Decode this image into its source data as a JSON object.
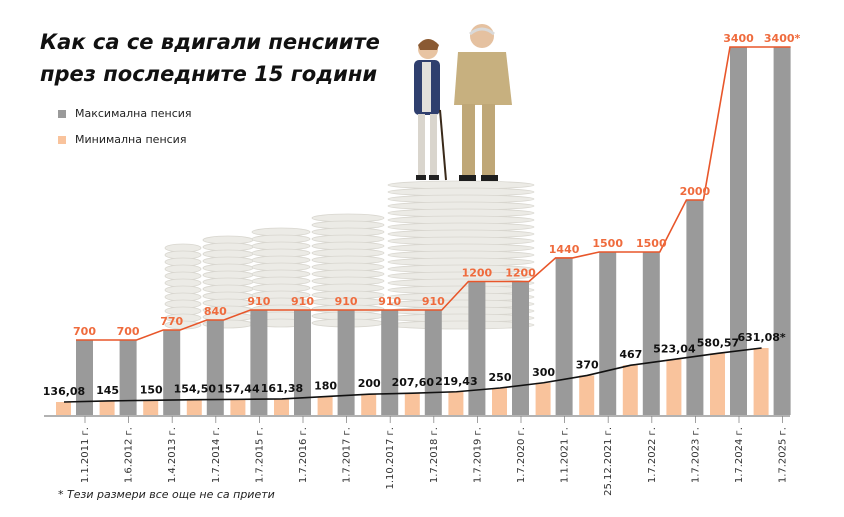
{
  "title_line1": "Как са се вдигали пенсиите",
  "title_line2": "през последните 15 години",
  "legend": [
    {
      "label": "Максимална пенсия",
      "color": "#9a9a9a"
    },
    {
      "label": "Минимална пенсия",
      "color": "#f9c39c"
    }
  ],
  "footnote": "* Тези размери все още не са приети",
  "chart_data": {
    "type": "bar",
    "categories": [
      "1.1.2011 г.",
      "1.6.2012 г.",
      "1.4.2013 г.",
      "1.7.2014 г.",
      "1.7.2015 г.",
      "1.7.2016 г.",
      "1.7.2017 г.",
      "1.10.2017 г.",
      "1.7.2018 г.",
      "1.7.2019 г.",
      "1.7.2020 г.",
      "1.1.2021 г.",
      "25.12.2021 г.",
      "1.7.2022 г.",
      "1.7.2023 г.",
      "1.7.2024 г.",
      "1.7.2025 г."
    ],
    "series": [
      {
        "name": "Максимална пенсия",
        "color": "#9a9a9a",
        "values": [
          700,
          700,
          770,
          840,
          910,
          910,
          910,
          910,
          910,
          1200,
          1200,
          1440,
          1500,
          1500,
          2000,
          3400,
          3400
        ],
        "labels": [
          "700",
          "700",
          "770",
          "840",
          "910",
          "910",
          "910",
          "910",
          "910",
          "1200",
          "1200",
          "1440",
          "1500",
          "1500",
          "2000",
          "3400",
          "3400*"
        ]
      },
      {
        "name": "Минимална пенсия",
        "color": "#f9c39c",
        "values": [
          136.08,
          145,
          150,
          154.5,
          157.44,
          161.38,
          180,
          200,
          207.6,
          219.43,
          250,
          300,
          370,
          467,
          523.04,
          580.57,
          631.08
        ],
        "labels": [
          "136,08",
          "145",
          "150",
          "154,50",
          "157,44",
          "161,38",
          "180",
          "200",
          "207,60",
          "219,43",
          "250",
          "300",
          "370",
          "467",
          "523,04",
          "580,57",
          "631,08*"
        ]
      }
    ],
    "line_colors": {
      "upper": "#e8562a",
      "lower": "#111111"
    },
    "upper_label_color": "#ef6b3d",
    "lower_label_color": "#111111",
    "grid": false
  }
}
